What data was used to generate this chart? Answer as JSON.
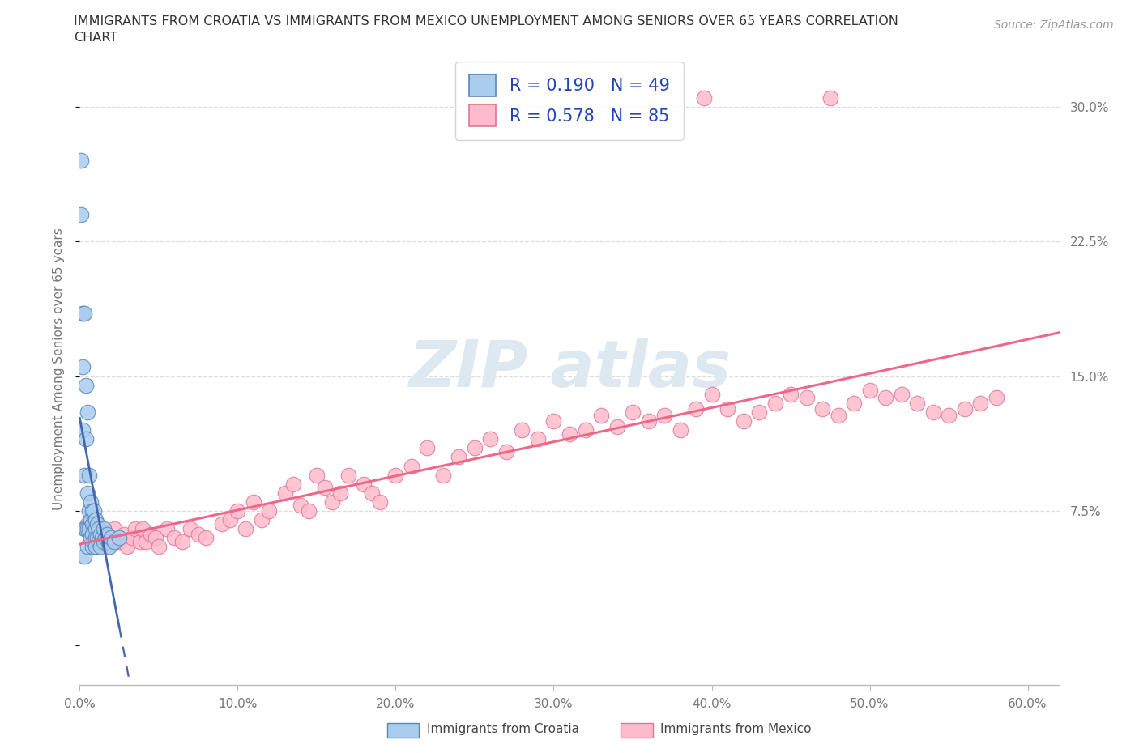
{
  "title_line1": "IMMIGRANTS FROM CROATIA VS IMMIGRANTS FROM MEXICO UNEMPLOYMENT AMONG SENIORS OVER 65 YEARS CORRELATION",
  "title_line2": "CHART",
  "source": "Source: ZipAtlas.com",
  "ylabel": "Unemployment Among Seniors over 65 years",
  "xlim": [
    0.0,
    0.62
  ],
  "ylim": [
    -0.022,
    0.33
  ],
  "croatia_R": 0.19,
  "croatia_N": 49,
  "mexico_R": 0.578,
  "mexico_N": 85,
  "croatia_dot_color": "#aaccee",
  "croatia_edge_color": "#5588bb",
  "mexico_dot_color": "#ffbbcc",
  "mexico_edge_color": "#dd7799",
  "croatia_line_color": "#4466aa",
  "mexico_line_color": "#ee6688",
  "legend_text_color": "#2244bb",
  "grid_color": "#dddddd",
  "axis_color": "#bbbbbb",
  "tick_label_color": "#777777",
  "title_color": "#333333",
  "source_color": "#999999",
  "ylabel_color": "#777777",
  "ytick_positions": [
    0.0,
    0.075,
    0.15,
    0.225,
    0.3
  ],
  "ytick_labels": [
    "",
    "7.5%",
    "15.0%",
    "22.5%",
    "30.0%"
  ],
  "xtick_positions": [
    0.0,
    0.1,
    0.2,
    0.3,
    0.4,
    0.5,
    0.6
  ],
  "xtick_labels": [
    "0.0%",
    "10.0%",
    "20.0%",
    "30.0%",
    "40.0%",
    "50.0%",
    "60.0%"
  ],
  "croatia_x": [
    0.001,
    0.001,
    0.002,
    0.002,
    0.002,
    0.003,
    0.003,
    0.003,
    0.003,
    0.004,
    0.004,
    0.004,
    0.005,
    0.005,
    0.005,
    0.005,
    0.006,
    0.006,
    0.006,
    0.007,
    0.007,
    0.007,
    0.008,
    0.008,
    0.008,
    0.008,
    0.009,
    0.009,
    0.009,
    0.01,
    0.01,
    0.01,
    0.01,
    0.011,
    0.011,
    0.012,
    0.012,
    0.013,
    0.013,
    0.014,
    0.015,
    0.015,
    0.016,
    0.017,
    0.018,
    0.019,
    0.02,
    0.022,
    0.025
  ],
  "croatia_y": [
    0.27,
    0.24,
    0.185,
    0.155,
    0.12,
    0.185,
    0.095,
    0.065,
    0.05,
    0.145,
    0.115,
    0.065,
    0.13,
    0.085,
    0.065,
    0.055,
    0.095,
    0.075,
    0.065,
    0.08,
    0.07,
    0.06,
    0.075,
    0.068,
    0.062,
    0.055,
    0.075,
    0.068,
    0.058,
    0.07,
    0.065,
    0.06,
    0.055,
    0.068,
    0.06,
    0.065,
    0.058,
    0.062,
    0.055,
    0.06,
    0.065,
    0.058,
    0.06,
    0.062,
    0.058,
    0.055,
    0.06,
    0.058,
    0.06
  ],
  "mexico_x": [
    0.005,
    0.008,
    0.01,
    0.012,
    0.015,
    0.018,
    0.02,
    0.022,
    0.025,
    0.028,
    0.03,
    0.033,
    0.035,
    0.038,
    0.04,
    0.042,
    0.045,
    0.048,
    0.05,
    0.055,
    0.06,
    0.065,
    0.07,
    0.075,
    0.08,
    0.09,
    0.095,
    0.1,
    0.105,
    0.11,
    0.115,
    0.12,
    0.13,
    0.135,
    0.14,
    0.145,
    0.15,
    0.155,
    0.16,
    0.165,
    0.17,
    0.18,
    0.185,
    0.19,
    0.2,
    0.21,
    0.22,
    0.23,
    0.24,
    0.25,
    0.26,
    0.27,
    0.28,
    0.29,
    0.3,
    0.31,
    0.32,
    0.33,
    0.34,
    0.35,
    0.36,
    0.37,
    0.38,
    0.39,
    0.4,
    0.41,
    0.42,
    0.43,
    0.44,
    0.45,
    0.46,
    0.47,
    0.48,
    0.49,
    0.5,
    0.51,
    0.52,
    0.53,
    0.54,
    0.55,
    0.56,
    0.57,
    0.58,
    0.395,
    0.475
  ],
  "mexico_y": [
    0.068,
    0.06,
    0.065,
    0.058,
    0.062,
    0.055,
    0.06,
    0.065,
    0.058,
    0.062,
    0.055,
    0.06,
    0.065,
    0.058,
    0.065,
    0.058,
    0.062,
    0.06,
    0.055,
    0.065,
    0.06,
    0.058,
    0.065,
    0.062,
    0.06,
    0.068,
    0.07,
    0.075,
    0.065,
    0.08,
    0.07,
    0.075,
    0.085,
    0.09,
    0.078,
    0.075,
    0.095,
    0.088,
    0.08,
    0.085,
    0.095,
    0.09,
    0.085,
    0.08,
    0.095,
    0.1,
    0.11,
    0.095,
    0.105,
    0.11,
    0.115,
    0.108,
    0.12,
    0.115,
    0.125,
    0.118,
    0.12,
    0.128,
    0.122,
    0.13,
    0.125,
    0.128,
    0.12,
    0.132,
    0.14,
    0.132,
    0.125,
    0.13,
    0.135,
    0.14,
    0.138,
    0.132,
    0.128,
    0.135,
    0.142,
    0.138,
    0.14,
    0.135,
    0.13,
    0.128,
    0.132,
    0.135,
    0.138,
    0.305,
    0.305
  ]
}
